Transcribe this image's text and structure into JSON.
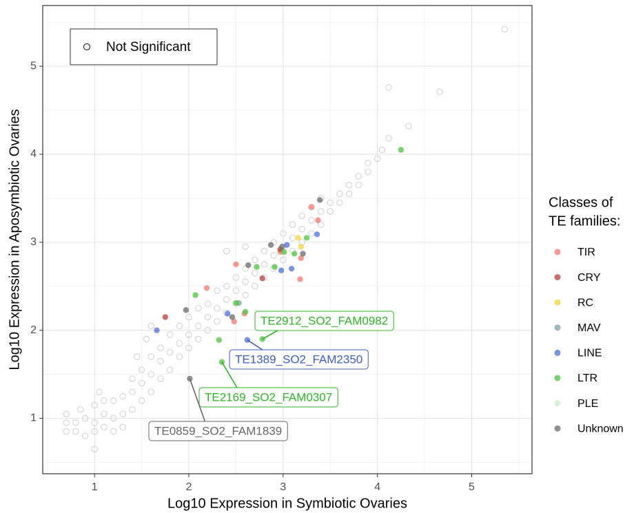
{
  "chart_data": {
    "type": "scatter",
    "xlabel": "Log10 Expression in Symbiotic Ovaries",
    "ylabel": "Log10 Expression in Aposymbiotic Ovaries",
    "xlim": [
      0.45,
      5.64
    ],
    "ylim": [
      0.37,
      5.69
    ],
    "xticks": [
      1,
      2,
      3,
      4,
      5
    ],
    "yticks": [
      1,
      2,
      3,
      4,
      5
    ],
    "grid": true,
    "background_series": {
      "name": "Not Significant",
      "color": "#d3d3d3",
      "marker": "open",
      "legend_position": "top-left",
      "x": [
        0.7,
        0.7,
        0.7,
        0.8,
        0.8,
        0.85,
        0.9,
        0.9,
        1.0,
        1.0,
        1.0,
        1.0,
        1.1,
        1.1,
        1.1,
        1.2,
        1.2,
        1.2,
        1.3,
        1.3,
        1.3,
        1.4,
        1.4,
        1.4,
        1.5,
        1.5,
        1.5,
        1.6,
        1.6,
        1.6,
        1.7,
        1.7,
        1.7,
        1.8,
        1.8,
        1.8,
        1.9,
        1.9,
        1.9,
        2.0,
        2.0,
        2.0,
        2.1,
        2.1,
        2.1,
        2.2,
        2.2,
        2.2,
        2.3,
        2.3,
        2.3,
        2.4,
        2.4,
        2.4,
        2.5,
        2.5,
        2.5,
        2.6,
        2.6,
        2.6,
        2.7,
        2.7,
        2.7,
        2.8,
        2.8,
        2.8,
        2.9,
        2.9,
        2.9,
        3.0,
        3.0,
        3.0,
        3.1,
        3.1,
        3.1,
        3.2,
        3.2,
        3.2,
        3.3,
        3.3,
        3.3,
        3.4,
        3.4,
        3.4,
        3.5,
        3.5,
        3.6,
        3.6,
        3.7,
        3.7,
        3.8,
        3.8,
        3.9,
        3.9,
        4.0,
        4.05,
        4.12,
        4.33,
        4.12,
        4.66,
        5.35,
        1.05,
        1.45,
        2.4,
        2.6,
        1.6,
        1.55
      ],
      "y": [
        0.85,
        0.95,
        1.05,
        0.85,
        0.95,
        1.1,
        0.8,
        1.0,
        0.85,
        0.95,
        1.15,
        0.65,
        0.9,
        1.05,
        1.2,
        0.85,
        1.0,
        1.2,
        1.05,
        1.25,
        0.9,
        1.1,
        1.3,
        1.45,
        1.2,
        1.4,
        1.55,
        1.3,
        1.5,
        1.7,
        1.45,
        1.65,
        1.8,
        1.55,
        1.75,
        1.95,
        1.7,
        1.85,
        2.05,
        1.8,
        1.95,
        2.15,
        1.9,
        2.05,
        2.25,
        2.0,
        2.15,
        2.3,
        2.1,
        2.25,
        2.45,
        2.2,
        2.35,
        2.5,
        2.3,
        2.45,
        2.6,
        2.4,
        2.55,
        2.7,
        2.5,
        2.65,
        2.8,
        2.6,
        2.75,
        2.9,
        2.7,
        2.85,
        3.0,
        2.8,
        2.95,
        3.1,
        2.9,
        3.05,
        3.2,
        3.0,
        3.15,
        3.3,
        3.1,
        3.25,
        3.4,
        3.2,
        3.35,
        3.5,
        3.35,
        3.45,
        3.45,
        3.55,
        3.55,
        3.65,
        3.65,
        3.75,
        3.8,
        3.9,
        3.95,
        4.05,
        4.18,
        4.32,
        4.76,
        4.71,
        5.42,
        1.3,
        1.7,
        2.9,
        2.95,
        2.05,
        1.9
      ]
    },
    "legend_title": [
      "Classes of",
      "TE families:"
    ],
    "legend_position": "right",
    "series": [
      {
        "name": "TIR",
        "color": "#f8766d",
        "marker": "filled",
        "x": [
          2.19,
          2.5,
          2.48,
          3.3,
          2.97,
          3.18,
          3.37,
          3.19,
          2.59
        ],
        "y": [
          2.48,
          2.75,
          2.1,
          3.4,
          2.89,
          2.58,
          3.25,
          2.82,
          2.19
        ]
      },
      {
        "name": "CRY",
        "color": "#b5403a",
        "marker": "filled",
        "x": [
          1.75,
          2.78,
          2.97
        ],
        "y": [
          2.15,
          2.59,
          2.92
        ]
      },
      {
        "name": "RC",
        "color": "#f2d43c",
        "marker": "filled",
        "x": [
          3.19,
          3.16
        ],
        "y": [
          2.95,
          3.05
        ]
      },
      {
        "name": "MAV",
        "color": "#7ea39c",
        "marker": "filled",
        "x": [
          2.53
        ],
        "y": [
          2.31
        ]
      },
      {
        "name": "LINE",
        "color": "#4f72d8",
        "marker": "filled",
        "x": [
          1.66,
          2.62,
          3.09,
          3.36,
          3.04,
          2.98,
          2.41
        ],
        "y": [
          2.0,
          1.89,
          2.7,
          3.09,
          2.97,
          2.68,
          2.19
        ]
      },
      {
        "name": "LTR",
        "color": "#4cc43c",
        "marker": "filled",
        "x": [
          4.25,
          2.07,
          2.6,
          2.32,
          2.78,
          2.35,
          3.01,
          3.12,
          2.91,
          3.25,
          2.5,
          2.72
        ],
        "y": [
          4.05,
          2.4,
          2.21,
          1.89,
          1.9,
          1.64,
          2.89,
          2.87,
          2.72,
          3.05,
          2.31,
          2.72
        ]
      },
      {
        "name": "PLE",
        "color": "#cfe8cb",
        "marker": "filled",
        "x": [],
        "y": []
      },
      {
        "name": "Unknown",
        "color": "#6b6b6b",
        "marker": "filled",
        "x": [
          2.01,
          1.97,
          2.46,
          3.39,
          2.87,
          3.21,
          2.99,
          2.63
        ],
        "y": [
          1.45,
          2.23,
          2.15,
          3.48,
          2.97,
          2.87,
          2.95,
          2.74
        ]
      }
    ],
    "annotations": [
      {
        "text": "TE2912_SO2_FAM0982",
        "x": 2.78,
        "y": 1.9,
        "color": "#2fb52a"
      },
      {
        "text": "TE1389_SO2_FAM2350",
        "x": 2.62,
        "y": 1.89,
        "color": "#3e5fc7"
      },
      {
        "text": "TE2169_SO2_FAM0307",
        "x": 2.35,
        "y": 1.64,
        "color": "#2fb52a"
      },
      {
        "text": "TE0859_SO2_FAM1839",
        "x": 2.01,
        "y": 1.45,
        "color": "#666666"
      }
    ]
  }
}
